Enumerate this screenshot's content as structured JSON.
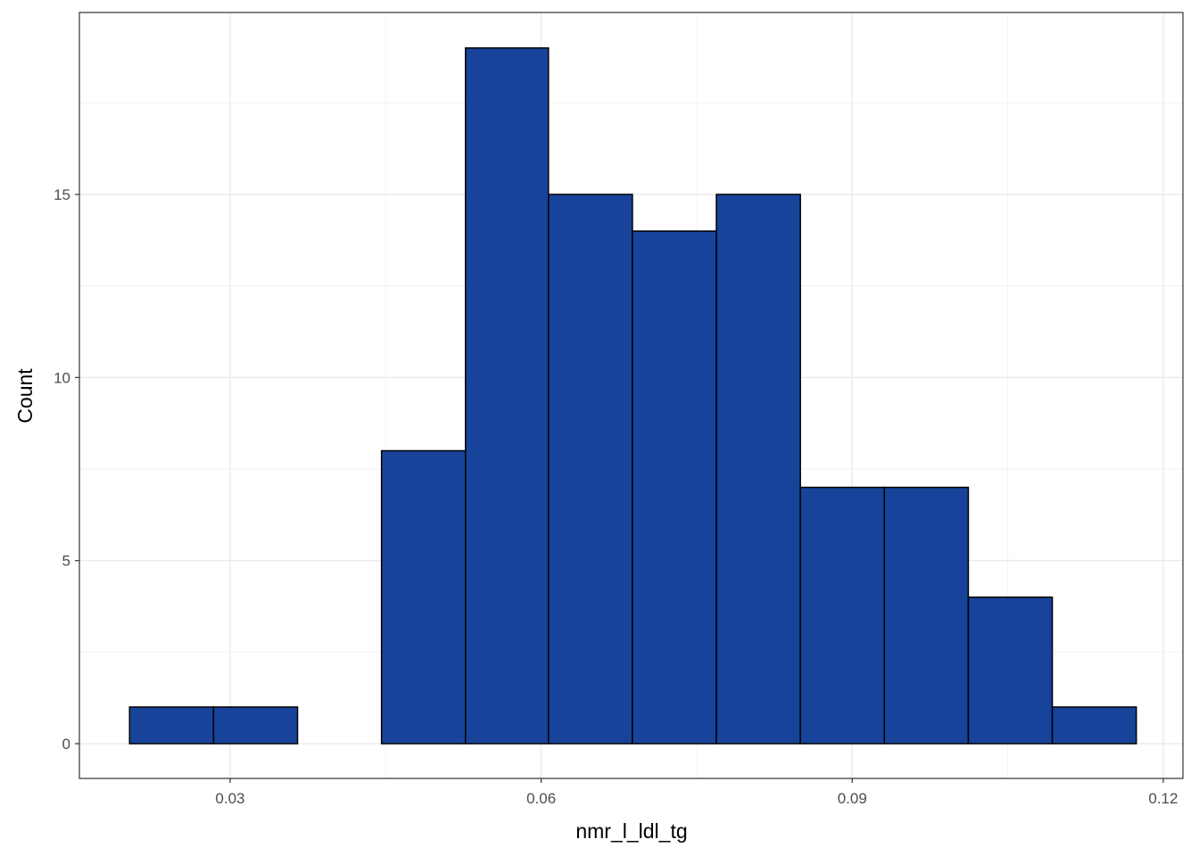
{
  "chart_data": {
    "type": "histogram",
    "x_label": "nmr_l_ldl_tg",
    "y_label": "Count",
    "bins": [
      0.0203,
      0.0284,
      0.0365,
      0.0446,
      0.0527,
      0.0607,
      0.0688,
      0.0769,
      0.085,
      0.0931,
      0.1012,
      0.1093,
      0.1174
    ],
    "values": [
      1,
      1,
      0,
      8,
      19,
      15,
      14,
      15,
      7,
      7,
      4,
      1
    ],
    "color": "#18439a",
    "xlim": [
      0.01546,
      0.1219
    ],
    "xticks": [
      0.03,
      0.06,
      0.09,
      0.12
    ],
    "ylim": [
      -0.95,
      19.97
    ],
    "yticks": [
      0,
      5,
      10,
      15
    ],
    "grid": true
  }
}
